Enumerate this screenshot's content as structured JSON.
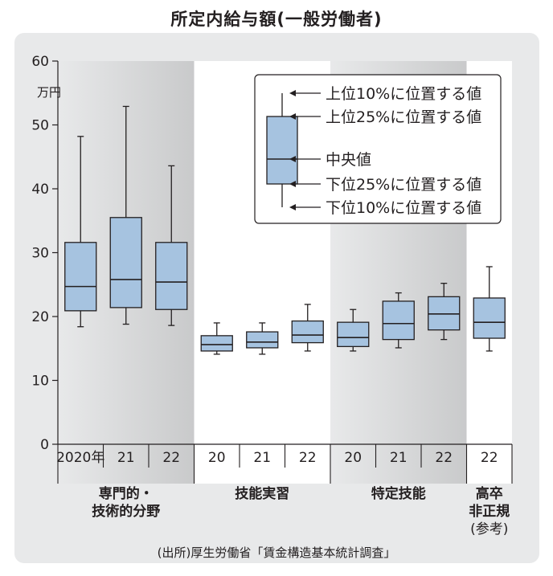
{
  "chart_data": {
    "type": "box",
    "title": "所定内給与額(一般労働者)",
    "unit_label": "万円",
    "ylim": [
      0,
      60
    ],
    "yticks": [
      0,
      10,
      20,
      30,
      40,
      50,
      60
    ],
    "groups": [
      {
        "label_lines": [
          "専門的・",
          "技術的分野"
        ],
        "shaded": true,
        "boxes": [
          {
            "year_label": "2020年",
            "p10": 18.4,
            "p25": 20.9,
            "median": 24.7,
            "p75": 31.6,
            "p90": 48.2
          },
          {
            "year_label": "21",
            "p10": 18.8,
            "p25": 21.4,
            "median": 25.8,
            "p75": 35.5,
            "p90": 52.9
          },
          {
            "year_label": "22",
            "p10": 18.6,
            "p25": 21.1,
            "median": 25.4,
            "p75": 31.6,
            "p90": 43.6
          }
        ]
      },
      {
        "label_lines": [
          "技能実習"
        ],
        "shaded": false,
        "boxes": [
          {
            "year_label": "20",
            "p10": 14.1,
            "p25": 14.6,
            "median": 15.6,
            "p75": 17.0,
            "p90": 19.0
          },
          {
            "year_label": "21",
            "p10": 14.1,
            "p25": 15.1,
            "median": 16.0,
            "p75": 17.6,
            "p90": 19.0
          },
          {
            "year_label": "22",
            "p10": 14.6,
            "p25": 15.9,
            "median": 17.1,
            "p75": 19.3,
            "p90": 21.9
          }
        ]
      },
      {
        "label_lines": [
          "特定技能"
        ],
        "shaded": true,
        "boxes": [
          {
            "year_label": "20",
            "p10": 14.6,
            "p25": 15.3,
            "median": 16.7,
            "p75": 19.1,
            "p90": 21.1
          },
          {
            "year_label": "21",
            "p10": 15.1,
            "p25": 16.4,
            "median": 18.9,
            "p75": 22.4,
            "p90": 23.7
          },
          {
            "year_label": "22",
            "p10": 16.4,
            "p25": 17.9,
            "median": 20.4,
            "p75": 23.1,
            "p90": 25.2
          }
        ]
      },
      {
        "label_lines": [
          "高卒",
          "非正規",
          "(参考)"
        ],
        "shaded": false,
        "boxes": [
          {
            "year_label": "22",
            "p10": 14.6,
            "p25": 16.6,
            "median": 19.1,
            "p75": 22.9,
            "p90": 27.8
          }
        ]
      }
    ],
    "legend": {
      "items": [
        "上位10%に位置する値",
        "上位25%に位置する値",
        "中央値",
        "下位25%に位置する値",
        "下位10%に位置する値"
      ]
    },
    "source": "(出所)厚生労働省「賃金構造基本統計調査」",
    "colors": {
      "box_fill": "#a6c3e0",
      "stroke": "#231f20",
      "panel_bg": "#e8e9ea",
      "shade_dark": "#c9cacb"
    }
  }
}
